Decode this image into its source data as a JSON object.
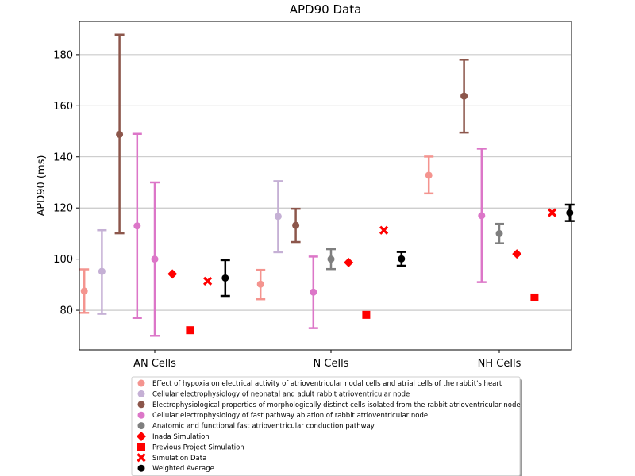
{
  "chart_data": {
    "type": "scatter",
    "title": "APD90 Data",
    "xlabel": "",
    "ylabel": "APD90 (ms)",
    "ylim": [
      64.5,
      193
    ],
    "yticks": [
      80,
      100,
      120,
      140,
      160,
      180
    ],
    "categories": [
      "AN Cells",
      "N Cells",
      "NH Cells"
    ],
    "grid": "horizontal",
    "legend_position": "bottom",
    "series": [
      {
        "name": "Effect of hypoxia on electrical activity of atrioventricular nodal cells and atrial cells of the rabbit's heart",
        "color": "#f4948f",
        "marker": "circle",
        "has_errorbar": true,
        "offset": -0.3,
        "points": [
          {
            "category": "AN Cells",
            "value": 87.5,
            "low": 79,
            "high": 96
          },
          {
            "category": "N Cells",
            "value": 90.2,
            "low": 84.3,
            "high": 95.8
          },
          {
            "category": "NH Cells",
            "value": 132.8,
            "low": 125.7,
            "high": 140.1
          }
        ]
      },
      {
        "name": "Cellular electrophysiology of neonatal and adult rabbit atrioventricular node",
        "color": "#c5b0d5",
        "marker": "circle",
        "has_errorbar": true,
        "offset": -0.225,
        "points": [
          {
            "category": "AN Cells",
            "value": 95.2,
            "low": 78.6,
            "high": 111.3
          },
          {
            "category": "N Cells",
            "value": 116.7,
            "low": 102.7,
            "high": 130.5
          }
        ]
      },
      {
        "name": "Electrophysiological properties of morphologically distinct cells isolated from the rabbit atrioventricular node",
        "color": "#8c564b",
        "marker": "circle",
        "has_errorbar": true,
        "offset": -0.15,
        "points": [
          {
            "category": "AN Cells",
            "value": 148.8,
            "low": 110.1,
            "high": 187.8
          },
          {
            "category": "N Cells",
            "value": 113.2,
            "low": 106.7,
            "high": 119.7
          },
          {
            "category": "NH Cells",
            "value": 163.8,
            "low": 149.5,
            "high": 178
          }
        ]
      },
      {
        "name": "Cellular electrophysiology of fast pathway ablation of rabbit atrioventricular node",
        "color": "#dc76c8",
        "marker": "circle",
        "has_errorbar": true,
        "offset": -0.075,
        "points": [
          {
            "category": "AN Cells",
            "value": 113,
            "low": 77,
            "high": 149
          },
          {
            "category": "N Cells",
            "value": 87.1,
            "low": 73,
            "high": 101
          },
          {
            "category": "NH Cells",
            "value": 117,
            "low": 91,
            "high": 143.2
          }
        ]
      },
      {
        "name": "Cellular electrophysiology of fast pathway ablation of rabbit atrioventricular node",
        "color": "#dc76c8",
        "marker": "circle",
        "has_errorbar": true,
        "offset": 0.0,
        "in_legend": false,
        "points": [
          {
            "category": "AN Cells",
            "value": 100,
            "low": 70,
            "high": 130
          }
        ]
      },
      {
        "name": "Anatomic and functional fast atrioventricular conduction pathway",
        "color": "#7f7f7f",
        "marker": "circle",
        "has_errorbar": true,
        "offset": 0.0,
        "points": [
          {
            "category": "N Cells",
            "value": 100,
            "low": 96.1,
            "high": 103.9
          },
          {
            "category": "NH Cells",
            "value": 110,
            "low": 106.2,
            "high": 113.8
          }
        ]
      },
      {
        "name": "Inada Simulation",
        "color": "#ff0000",
        "marker": "diamond",
        "has_errorbar": false,
        "offset": 0.075,
        "points": [
          {
            "category": "AN Cells",
            "value": 94.2
          },
          {
            "category": "N Cells",
            "value": 98.7
          },
          {
            "category": "NH Cells",
            "value": 102
          }
        ]
      },
      {
        "name": "Previous Project Simulation",
        "color": "#ff0000",
        "marker": "square",
        "has_errorbar": false,
        "offset": 0.15,
        "points": [
          {
            "category": "AN Cells",
            "value": 72.2
          },
          {
            "category": "N Cells",
            "value": 78.2
          },
          {
            "category": "NH Cells",
            "value": 85
          }
        ]
      },
      {
        "name": "Simulation Data",
        "color": "#ff0000",
        "marker": "x",
        "has_errorbar": false,
        "offset": 0.225,
        "points": [
          {
            "category": "AN Cells",
            "value": 91.4
          },
          {
            "category": "N Cells",
            "value": 111.3
          },
          {
            "category": "NH Cells",
            "value": 118.2
          }
        ]
      },
      {
        "name": "Weighted Average",
        "color": "#000000",
        "marker": "circle",
        "has_errorbar": true,
        "offset": 0.3,
        "points": [
          {
            "category": "AN Cells",
            "value": 92.6,
            "low": 85.6,
            "high": 99.6
          },
          {
            "category": "N Cells",
            "value": 100.1,
            "low": 97.4,
            "high": 102.8
          },
          {
            "category": "NH Cells",
            "value": 118.1,
            "low": 114.9,
            "high": 121.3
          }
        ]
      }
    ]
  }
}
